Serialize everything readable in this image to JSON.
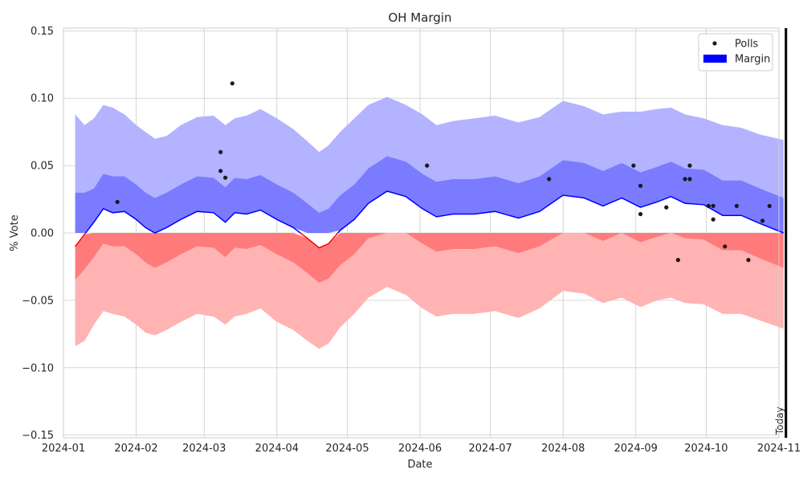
{
  "chart_data": {
    "type": "line",
    "title": "OH Margin",
    "xlabel": "Date",
    "ylabel": "% Vote",
    "ylim": [
      -0.152,
      0.152
    ],
    "xlim": [
      "2024-01-01",
      "2024-11-01"
    ],
    "grid": true,
    "legend_placement": "top-right",
    "legend": [
      {
        "label": "Polls",
        "kind": "point",
        "color": "#1a1a1a"
      },
      {
        "label": "Margin",
        "kind": "patch",
        "color": "#0000ff"
      }
    ],
    "x_ticks": [
      "2024-01",
      "2024-02",
      "2024-03",
      "2024-04",
      "2024-05",
      "2024-06",
      "2024-07",
      "2024-08",
      "2024-09",
      "2024-10",
      "2024-11"
    ],
    "y_ticks": [
      "0.15",
      "0.10",
      "0.05",
      "0.00",
      "−0.05",
      "−0.10",
      "−0.15"
    ],
    "y_tick_values": [
      0.15,
      0.1,
      0.05,
      0.0,
      -0.05,
      -0.1,
      -0.15
    ],
    "today": {
      "date": "2024-11-04",
      "label": "Today"
    },
    "colors": {
      "positive": "#0000ff",
      "negative": "#ff0000",
      "outer_pos": "#b3b3ff",
      "inner_pos": "#7b7bff",
      "outer_neg": "#ffb3b3",
      "inner_neg": "#ff7b7b",
      "poll": "#1a1a1a"
    },
    "series": [
      {
        "name": "Margin",
        "points": [
          [
            "2024-01-06",
            -0.01,
            -0.084,
            0.088,
            -0.035,
            0.03
          ],
          [
            "2024-01-10",
            -0.001,
            -0.08,
            0.08,
            -0.027,
            0.03
          ],
          [
            "2024-01-14",
            0.008,
            -0.068,
            0.085,
            -0.018,
            0.033
          ],
          [
            "2024-01-18",
            0.018,
            -0.058,
            0.095,
            -0.008,
            0.044
          ],
          [
            "2024-01-22",
            0.015,
            -0.06,
            0.093,
            -0.01,
            0.042
          ],
          [
            "2024-01-27",
            0.016,
            -0.062,
            0.088,
            -0.01,
            0.042
          ],
          [
            "2024-02-01",
            0.01,
            -0.068,
            0.08,
            -0.016,
            0.036
          ],
          [
            "2024-02-05",
            0.004,
            -0.074,
            0.075,
            -0.022,
            0.03
          ],
          [
            "2024-02-09",
            0.0,
            -0.076,
            0.07,
            -0.026,
            0.026
          ],
          [
            "2024-02-14",
            0.004,
            -0.072,
            0.072,
            -0.022,
            0.03
          ],
          [
            "2024-02-20",
            0.01,
            -0.066,
            0.08,
            -0.016,
            0.036
          ],
          [
            "2024-02-27",
            0.016,
            -0.06,
            0.086,
            -0.01,
            0.042
          ],
          [
            "2024-03-05",
            0.015,
            -0.062,
            0.087,
            -0.011,
            0.041
          ],
          [
            "2024-03-10",
            0.008,
            -0.068,
            0.08,
            -0.018,
            0.034
          ],
          [
            "2024-03-14",
            0.015,
            -0.062,
            0.085,
            -0.011,
            0.041
          ],
          [
            "2024-03-19",
            0.014,
            -0.06,
            0.087,
            -0.012,
            0.04
          ],
          [
            "2024-03-25",
            0.017,
            -0.056,
            0.092,
            -0.009,
            0.043
          ],
          [
            "2024-04-01",
            0.01,
            -0.066,
            0.085,
            -0.016,
            0.036
          ],
          [
            "2024-04-08",
            0.004,
            -0.072,
            0.077,
            -0.022,
            0.03
          ],
          [
            "2024-04-14",
            -0.004,
            -0.08,
            0.068,
            -0.03,
            0.022
          ],
          [
            "2024-04-19",
            -0.011,
            -0.086,
            0.06,
            -0.037,
            0.015
          ],
          [
            "2024-04-23",
            -0.008,
            -0.082,
            0.065,
            -0.034,
            0.018
          ],
          [
            "2024-04-28",
            0.002,
            -0.07,
            0.075,
            -0.024,
            0.028
          ],
          [
            "2024-05-04",
            0.01,
            -0.06,
            0.085,
            -0.016,
            0.036
          ],
          [
            "2024-05-10",
            0.022,
            -0.048,
            0.095,
            -0.004,
            0.048
          ],
          [
            "2024-05-18",
            0.031,
            -0.04,
            0.101,
            0.005,
            0.057
          ],
          [
            "2024-05-26",
            0.027,
            -0.046,
            0.095,
            0.001,
            0.053
          ],
          [
            "2024-06-02",
            0.018,
            -0.056,
            0.088,
            -0.008,
            0.044
          ],
          [
            "2024-06-08",
            0.012,
            -0.062,
            0.08,
            -0.014,
            0.038
          ],
          [
            "2024-06-15",
            0.014,
            -0.06,
            0.083,
            -0.012,
            0.04
          ],
          [
            "2024-06-24",
            0.014,
            -0.06,
            0.085,
            -0.012,
            0.04
          ],
          [
            "2024-07-03",
            0.016,
            -0.058,
            0.087,
            -0.01,
            0.042
          ],
          [
            "2024-07-13",
            0.011,
            -0.063,
            0.082,
            -0.015,
            0.037
          ],
          [
            "2024-07-22",
            0.016,
            -0.056,
            0.086,
            -0.01,
            0.042
          ],
          [
            "2024-08-01",
            0.028,
            -0.043,
            0.098,
            0.002,
            0.054
          ],
          [
            "2024-08-10",
            0.026,
            -0.045,
            0.094,
            0.0,
            0.052
          ],
          [
            "2024-08-18",
            0.02,
            -0.052,
            0.088,
            -0.006,
            0.046
          ],
          [
            "2024-08-26",
            0.026,
            -0.048,
            0.09,
            0.0,
            0.052
          ],
          [
            "2024-09-03",
            0.019,
            -0.055,
            0.09,
            -0.007,
            0.045
          ],
          [
            "2024-09-10",
            0.023,
            -0.05,
            0.092,
            -0.003,
            0.049
          ],
          [
            "2024-09-16",
            0.027,
            -0.048,
            0.093,
            0.001,
            0.053
          ],
          [
            "2024-09-22",
            0.022,
            -0.052,
            0.088,
            -0.004,
            0.048
          ],
          [
            "2024-09-30",
            0.021,
            -0.053,
            0.085,
            -0.005,
            0.047
          ],
          [
            "2024-10-08",
            0.013,
            -0.06,
            0.08,
            -0.013,
            0.039
          ],
          [
            "2024-10-16",
            0.013,
            -0.06,
            0.078,
            -0.013,
            0.039
          ],
          [
            "2024-10-24",
            0.007,
            -0.065,
            0.073,
            -0.019,
            0.033
          ],
          [
            "2024-11-03",
            0.0,
            -0.071,
            0.069,
            -0.026,
            0.026
          ]
        ]
      }
    ],
    "polls": [
      [
        "2024-01-24",
        0.023
      ],
      [
        "2024-03-08",
        0.06
      ],
      [
        "2024-03-08",
        0.046
      ],
      [
        "2024-03-10",
        0.041
      ],
      [
        "2024-03-13",
        0.111
      ],
      [
        "2024-06-04",
        0.05
      ],
      [
        "2024-07-26",
        0.04
      ],
      [
        "2024-08-31",
        0.05
      ],
      [
        "2024-09-03",
        0.035
      ],
      [
        "2024-09-03",
        0.014
      ],
      [
        "2024-09-14",
        0.019
      ],
      [
        "2024-09-19",
        -0.02
      ],
      [
        "2024-09-22",
        0.04
      ],
      [
        "2024-09-24",
        0.05
      ],
      [
        "2024-09-24",
        0.04
      ],
      [
        "2024-10-02",
        0.02
      ],
      [
        "2024-10-04",
        0.02
      ],
      [
        "2024-10-04",
        0.01
      ],
      [
        "2024-10-09",
        -0.01
      ],
      [
        "2024-10-14",
        0.02
      ],
      [
        "2024-10-19",
        -0.02
      ],
      [
        "2024-10-25",
        0.009
      ],
      [
        "2024-10-28",
        0.02
      ]
    ]
  }
}
